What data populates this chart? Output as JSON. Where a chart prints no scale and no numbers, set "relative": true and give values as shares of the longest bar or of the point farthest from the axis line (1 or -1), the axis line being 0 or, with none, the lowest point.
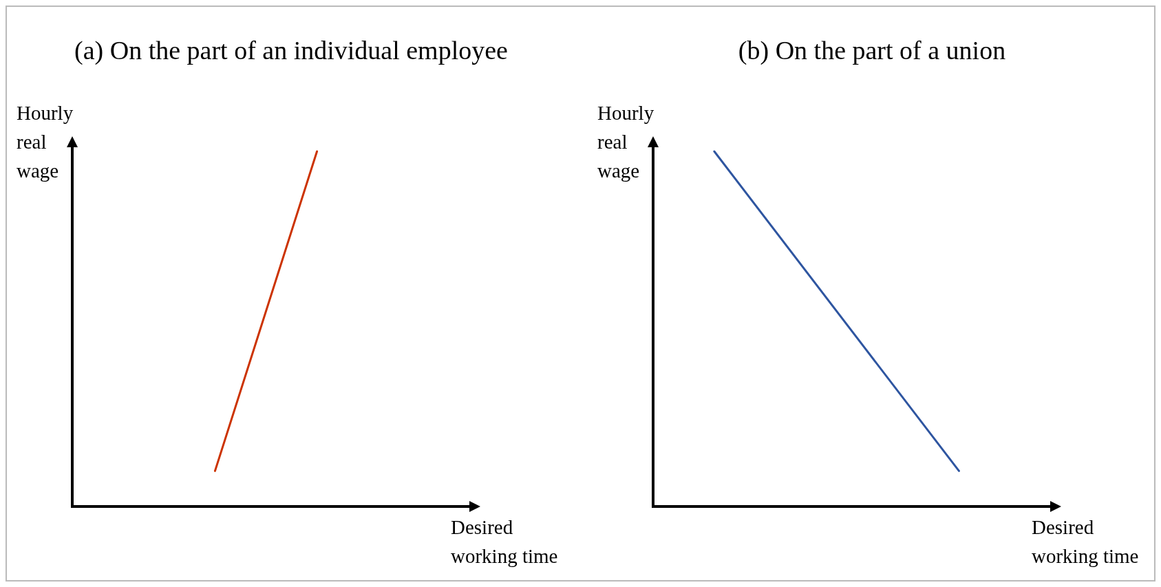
{
  "chart_data": [
    {
      "type": "line",
      "title": "(a) On the part of an individual employee",
      "xlabel": "Desired working time",
      "ylabel": "Hourly real wage",
      "relative": true,
      "categories": [
        null,
        null,
        null,
        null,
        null,
        null,
        null,
        null,
        null,
        null,
        null,
        null,
        null,
        null,
        null,
        null,
        null,
        null,
        null,
        null
      ],
      "series": [
        {
          "color": "#cc3300",
          "values": [
            null,
            null,
            null,
            null,
            null,
            null,
            null,
            0.1,
            null,
            null,
            null,
            null,
            1,
            null,
            null,
            null,
            null,
            null,
            null,
            null
          ]
        }
      ]
    },
    {
      "type": "line",
      "title": "(b) On the part of a union",
      "xlabel": "Desired working time",
      "ylabel": "Hourly real wage",
      "relative": true,
      "categories": [
        null,
        null,
        null,
        null,
        null,
        null,
        null,
        null,
        null,
        null,
        null,
        null,
        null,
        null,
        null,
        null,
        null,
        null,
        null,
        null
      ],
      "series": [
        {
          "color": "#2e55a0",
          "values": [
            null,
            null,
            null,
            1,
            null,
            null,
            null,
            null,
            null,
            null,
            null,
            null,
            null,
            null,
            null,
            0.1,
            null,
            null,
            null,
            null
          ]
        }
      ]
    }
  ]
}
